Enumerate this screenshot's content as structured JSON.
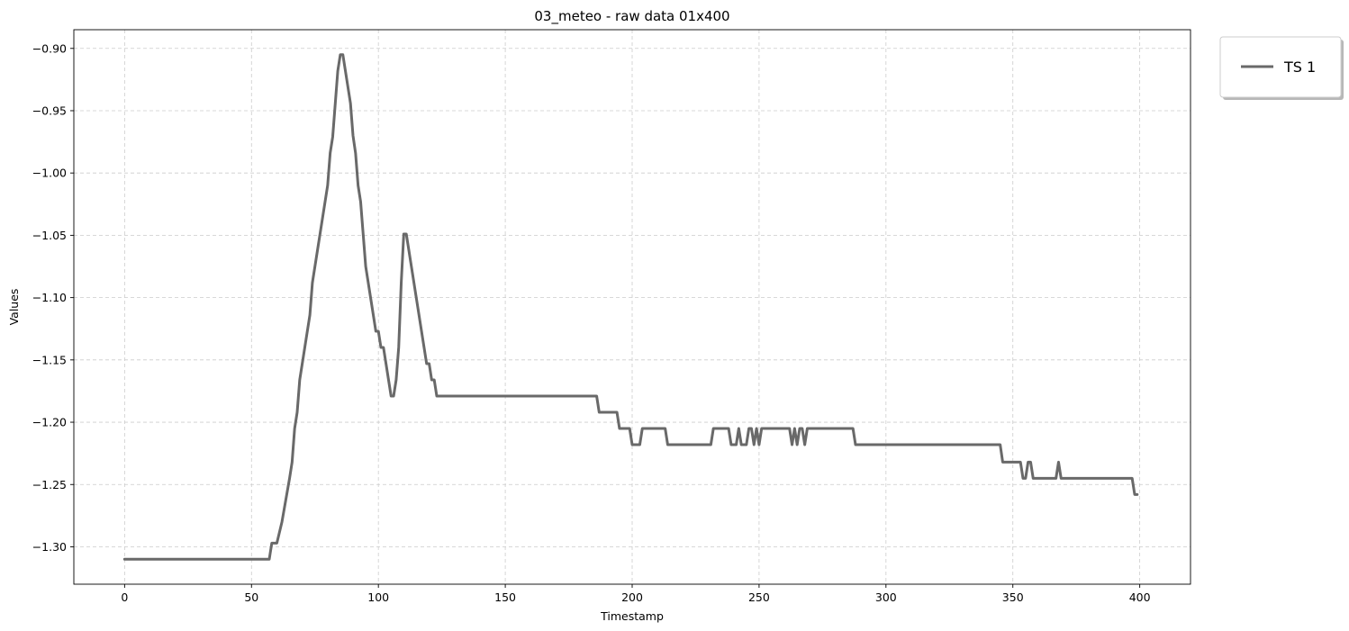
{
  "chart_data": {
    "type": "line",
    "title": "03_meteo - raw data 01x400",
    "xlabel": "Timestamp",
    "ylabel": "Values",
    "xlim": [
      -20,
      420
    ],
    "ylim": [
      -1.33,
      -0.885
    ],
    "xticks": [
      0,
      50,
      100,
      150,
      200,
      250,
      300,
      350,
      400
    ],
    "xtick_labels": [
      "0",
      "50",
      "100",
      "150",
      "200",
      "250",
      "300",
      "350",
      "400"
    ],
    "yticks": [
      -1.3,
      -1.25,
      -1.2,
      -1.15,
      -1.1,
      -1.05,
      -1.0,
      -0.95,
      -0.9
    ],
    "ytick_labels": [
      "−1.30",
      "−1.25",
      "−1.20",
      "−1.15",
      "−1.10",
      "−1.05",
      "−1.00",
      "−0.95",
      "−0.90"
    ],
    "grid": true,
    "legend_position": "outside-top-right",
    "series": [
      {
        "name": "TS 1",
        "color": "#696969",
        "points": [
          [
            0,
            -1.31
          ],
          [
            57,
            -1.31
          ],
          [
            58,
            -1.297
          ],
          [
            60,
            -1.297
          ],
          [
            62,
            -1.28
          ],
          [
            65,
            -1.245
          ],
          [
            66,
            -1.232
          ],
          [
            67,
            -1.205
          ],
          [
            68,
            -1.192
          ],
          [
            69,
            -1.166
          ],
          [
            71,
            -1.14
          ],
          [
            73,
            -1.114
          ],
          [
            74,
            -1.088
          ],
          [
            76,
            -1.062
          ],
          [
            78,
            -1.036
          ],
          [
            80,
            -1.01
          ],
          [
            81,
            -0.984
          ],
          [
            82,
            -0.971
          ],
          [
            84,
            -0.918
          ],
          [
            85,
            -0.905
          ],
          [
            86,
            -0.905
          ],
          [
            89,
            -0.944
          ],
          [
            90,
            -0.97
          ],
          [
            91,
            -0.984
          ],
          [
            92,
            -1.01
          ],
          [
            93,
            -1.023
          ],
          [
            95,
            -1.075
          ],
          [
            97,
            -1.101
          ],
          [
            99,
            -1.127
          ],
          [
            100,
            -1.127
          ],
          [
            101,
            -1.14
          ],
          [
            102,
            -1.14
          ],
          [
            104,
            -1.166
          ],
          [
            105,
            -1.179
          ],
          [
            106,
            -1.179
          ],
          [
            107,
            -1.166
          ],
          [
            108,
            -1.14
          ],
          [
            109,
            -1.088
          ],
          [
            110,
            -1.049
          ],
          [
            111,
            -1.049
          ],
          [
            119,
            -1.153
          ],
          [
            120,
            -1.153
          ],
          [
            121,
            -1.166
          ],
          [
            122,
            -1.166
          ],
          [
            123,
            -1.179
          ],
          [
            186,
            -1.179
          ],
          [
            187,
            -1.192
          ],
          [
            194,
            -1.192
          ],
          [
            195,
            -1.205
          ],
          [
            199,
            -1.205
          ],
          [
            200,
            -1.218
          ],
          [
            203,
            -1.218
          ],
          [
            204,
            -1.205
          ],
          [
            213,
            -1.205
          ],
          [
            214,
            -1.218
          ],
          [
            231,
            -1.218
          ],
          [
            232,
            -1.205
          ],
          [
            238,
            -1.205
          ],
          [
            239,
            -1.218
          ],
          [
            241,
            -1.218
          ],
          [
            242,
            -1.205
          ],
          [
            243,
            -1.218
          ],
          [
            245,
            -1.218
          ],
          [
            246,
            -1.205
          ],
          [
            247,
            -1.205
          ],
          [
            248,
            -1.218
          ],
          [
            249,
            -1.205
          ],
          [
            250,
            -1.218
          ],
          [
            251,
            -1.205
          ],
          [
            262,
            -1.205
          ],
          [
            263,
            -1.218
          ],
          [
            264,
            -1.205
          ],
          [
            265,
            -1.218
          ],
          [
            266,
            -1.205
          ],
          [
            267,
            -1.205
          ],
          [
            268,
            -1.218
          ],
          [
            269,
            -1.205
          ],
          [
            287,
            -1.205
          ],
          [
            288,
            -1.218
          ],
          [
            345,
            -1.218
          ],
          [
            346,
            -1.232
          ],
          [
            353,
            -1.232
          ],
          [
            354,
            -1.245
          ],
          [
            355,
            -1.245
          ],
          [
            356,
            -1.232
          ],
          [
            357,
            -1.232
          ],
          [
            358,
            -1.245
          ],
          [
            367,
            -1.245
          ],
          [
            368,
            -1.232
          ],
          [
            369,
            -1.245
          ],
          [
            397,
            -1.245
          ],
          [
            398,
            -1.258
          ],
          [
            399,
            -1.258
          ]
        ]
      }
    ]
  }
}
